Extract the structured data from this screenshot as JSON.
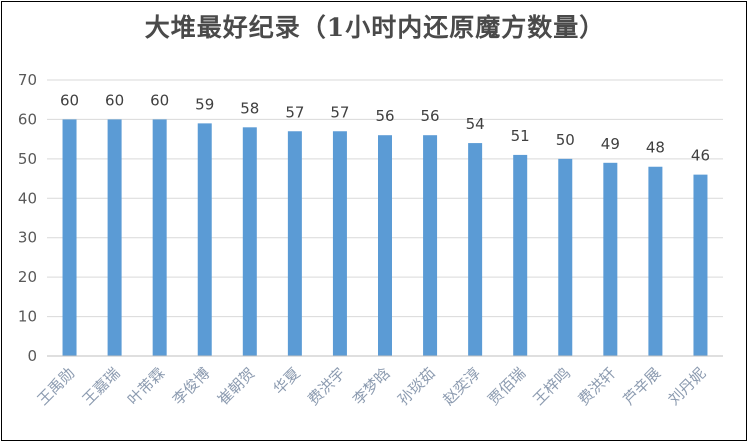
{
  "chart_data": {
    "type": "bar",
    "title": "大堆最好纪录（1小时内还原魔方数量）",
    "xlabel": "",
    "ylabel": "",
    "categories": [
      "王禹勋",
      "王嘉瑞",
      "叶芾霖",
      "李俊博",
      "崔朝贺",
      "华夏",
      "费洪宇",
      "李梦晗",
      "孙琰茹",
      "赵奕淳",
      "贾佰瑞",
      "王梓鸣",
      "费洪轩",
      "芦辛展",
      "刘丹妮"
    ],
    "values": [
      60,
      60,
      60,
      59,
      58,
      57,
      57,
      56,
      56,
      54,
      51,
      50,
      49,
      48,
      46
    ],
    "ylim": [
      0,
      70
    ],
    "yticks": [
      0,
      10,
      20,
      30,
      40,
      50,
      60,
      70
    ],
    "grid": true,
    "legend": "none",
    "data_labels": true,
    "colors": {
      "bar": "#5b9bd5",
      "grid": "#d9d9d9",
      "axis": "#bfbfbf",
      "title": "#4a4a4a"
    }
  }
}
